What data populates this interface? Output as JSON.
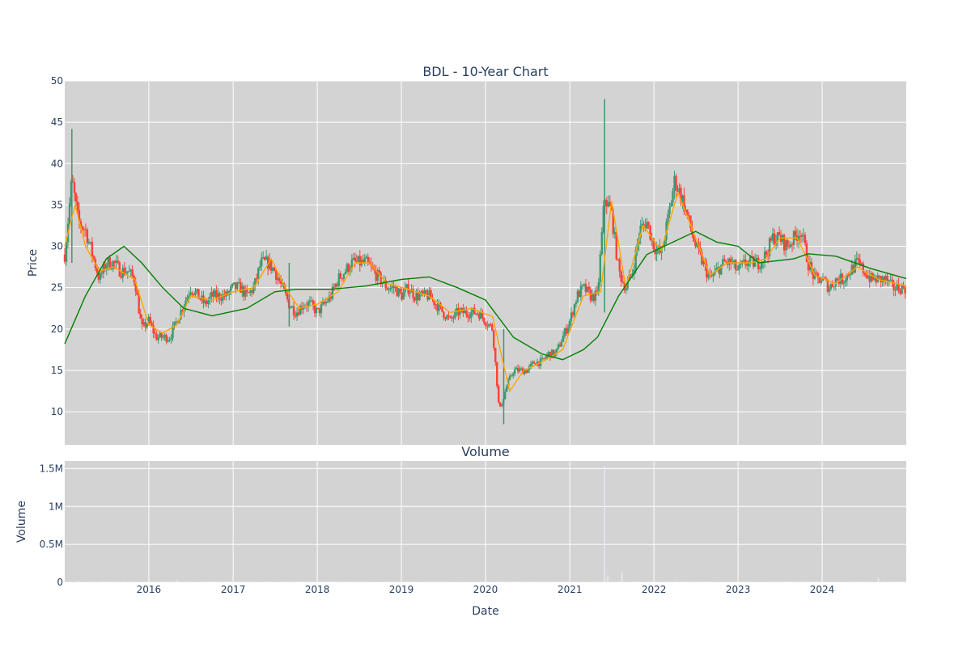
{
  "chart_data": [
    {
      "type": "candlestick",
      "title": "BDL - 10-Year Chart",
      "ylabel": "Price",
      "xlabel": "",
      "ylim": [
        6,
        50
      ],
      "y_ticks": [
        10,
        15,
        20,
        25,
        30,
        35,
        40,
        45,
        50
      ],
      "x_range": [
        "2015-01-01",
        "2024-12-31"
      ],
      "x_ticks": [
        "2016",
        "2017",
        "2018",
        "2019",
        "2020",
        "2021",
        "2022",
        "2023",
        "2024"
      ],
      "grid": true,
      "colors": {
        "increasing": "#3d9970",
        "decreasing": "#ff4136",
        "ma_short": "#ffa500",
        "ma_long": "#008000",
        "plot_bg": "#d3d3d3"
      },
      "close_approx": [
        [
          "2015-01-01",
          29
        ],
        [
          "2015-02-01",
          38
        ],
        [
          "2015-03-01",
          33
        ],
        [
          "2015-04-01",
          32
        ],
        [
          "2015-05-01",
          29
        ],
        [
          "2015-06-01",
          26
        ],
        [
          "2015-07-01",
          28
        ],
        [
          "2015-08-01",
          28
        ],
        [
          "2015-09-01",
          27
        ],
        [
          "2015-10-01",
          27
        ],
        [
          "2015-11-01",
          26
        ],
        [
          "2015-12-01",
          20
        ],
        [
          "2016-01-01",
          21
        ],
        [
          "2016-02-01",
          19
        ],
        [
          "2016-03-01",
          19
        ],
        [
          "2016-04-01",
          19
        ],
        [
          "2016-05-01",
          21
        ],
        [
          "2016-06-01",
          23
        ],
        [
          "2016-07-01",
          25
        ],
        [
          "2016-08-01",
          24
        ],
        [
          "2016-09-01",
          23
        ],
        [
          "2016-10-01",
          24
        ],
        [
          "2016-11-01",
          24
        ],
        [
          "2016-12-01",
          24
        ],
        [
          "2017-01-01",
          25
        ],
        [
          "2017-02-01",
          25
        ],
        [
          "2017-03-01",
          24
        ],
        [
          "2017-04-01",
          25
        ],
        [
          "2017-05-01",
          28
        ],
        [
          "2017-06-01",
          28
        ],
        [
          "2017-07-01",
          27
        ],
        [
          "2017-08-01",
          25
        ],
        [
          "2017-09-01",
          23
        ],
        [
          "2017-10-01",
          22
        ],
        [
          "2017-11-01",
          23
        ],
        [
          "2017-12-01",
          23
        ],
        [
          "2018-01-01",
          22
        ],
        [
          "2018-02-01",
          23
        ],
        [
          "2018-03-01",
          24
        ],
        [
          "2018-04-01",
          26
        ],
        [
          "2018-05-01",
          27
        ],
        [
          "2018-06-01",
          28
        ],
        [
          "2018-07-01",
          28
        ],
        [
          "2018-08-01",
          28
        ],
        [
          "2018-09-01",
          27
        ],
        [
          "2018-10-01",
          26
        ],
        [
          "2018-11-01",
          25
        ],
        [
          "2018-12-01",
          25
        ],
        [
          "2019-01-01",
          24
        ],
        [
          "2019-02-01",
          25
        ],
        [
          "2019-03-01",
          24
        ],
        [
          "2019-04-01",
          24
        ],
        [
          "2019-05-01",
          24
        ],
        [
          "2019-06-01",
          23
        ],
        [
          "2019-07-01",
          22
        ],
        [
          "2019-08-01",
          21
        ],
        [
          "2019-09-01",
          22
        ],
        [
          "2019-10-01",
          22
        ],
        [
          "2019-11-01",
          22
        ],
        [
          "2019-12-01",
          22
        ],
        [
          "2020-01-01",
          21
        ],
        [
          "2020-02-01",
          20
        ],
        [
          "2020-03-01",
          10
        ],
        [
          "2020-04-01",
          13
        ],
        [
          "2020-05-01",
          15
        ],
        [
          "2020-06-01",
          15
        ],
        [
          "2020-07-01",
          15
        ],
        [
          "2020-08-01",
          16
        ],
        [
          "2020-09-01",
          16
        ],
        [
          "2020-10-01",
          17
        ],
        [
          "2020-11-01",
          17
        ],
        [
          "2020-12-01",
          19
        ],
        [
          "2021-01-01",
          21
        ],
        [
          "2021-02-01",
          24
        ],
        [
          "2021-03-01",
          25
        ],
        [
          "2021-04-01",
          24
        ],
        [
          "2021-05-01",
          24
        ],
        [
          "2021-06-01",
          36
        ],
        [
          "2021-07-01",
          34
        ],
        [
          "2021-08-01",
          27
        ],
        [
          "2021-09-01",
          25
        ],
        [
          "2021-10-01",
          27
        ],
        [
          "2021-11-01",
          32
        ],
        [
          "2021-12-01",
          33
        ],
        [
          "2022-01-01",
          30
        ],
        [
          "2022-02-01",
          29
        ],
        [
          "2022-03-01",
          33
        ],
        [
          "2022-04-01",
          38
        ],
        [
          "2022-05-01",
          36
        ],
        [
          "2022-06-01",
          33
        ],
        [
          "2022-07-01",
          30
        ],
        [
          "2022-08-01",
          28
        ],
        [
          "2022-09-01",
          26
        ],
        [
          "2022-10-01",
          27
        ],
        [
          "2022-11-01",
          28
        ],
        [
          "2022-12-01",
          28
        ],
        [
          "2023-01-01",
          27
        ],
        [
          "2023-02-01",
          28
        ],
        [
          "2023-03-01",
          28
        ],
        [
          "2023-04-01",
          28
        ],
        [
          "2023-05-01",
          29
        ],
        [
          "2023-06-01",
          31
        ],
        [
          "2023-07-01",
          31
        ],
        [
          "2023-08-01",
          30
        ],
        [
          "2023-09-01",
          31
        ],
        [
          "2023-10-01",
          32
        ],
        [
          "2023-11-01",
          28
        ],
        [
          "2023-12-01",
          26
        ],
        [
          "2024-01-01",
          26
        ],
        [
          "2024-02-01",
          25
        ],
        [
          "2024-03-01",
          26
        ],
        [
          "2024-04-01",
          26
        ],
        [
          "2024-05-01",
          27
        ],
        [
          "2024-06-01",
          28
        ],
        [
          "2024-07-01",
          27
        ],
        [
          "2024-08-01",
          26
        ],
        [
          "2024-09-01",
          26
        ],
        [
          "2024-10-01",
          26
        ],
        [
          "2024-11-01",
          25
        ],
        [
          "2024-12-01",
          25
        ]
      ],
      "spikes": [
        {
          "date": "2015-02-01",
          "high": 44.2,
          "low": 28
        },
        {
          "date": "2021-06-01",
          "high": 47.8,
          "low": 22
        },
        {
          "date": "2020-03-20",
          "high": 20,
          "low": 8.5
        },
        {
          "date": "2017-09-01",
          "high": 28,
          "low": 20.3
        }
      ],
      "ma_short_approx": [
        [
          "2015-01-01",
          30
        ],
        [
          "2015-02-15",
          35
        ],
        [
          "2015-04-01",
          30
        ],
        [
          "2015-06-01",
          27
        ],
        [
          "2015-08-01",
          27.5
        ],
        [
          "2015-11-01",
          26
        ],
        [
          "2016-01-01",
          20.5
        ],
        [
          "2016-03-01",
          19.5
        ],
        [
          "2016-05-01",
          20.5
        ],
        [
          "2016-07-01",
          24
        ],
        [
          "2016-10-01",
          23.5
        ],
        [
          "2017-01-01",
          24.5
        ],
        [
          "2017-04-01",
          25
        ],
        [
          "2017-06-15",
          28.5
        ],
        [
          "2017-08-15",
          25
        ],
        [
          "2017-10-15",
          22.5
        ],
        [
          "2018-01-01",
          23
        ],
        [
          "2018-04-01",
          24.5
        ],
        [
          "2018-06-15",
          28
        ],
        [
          "2018-08-15",
          28
        ],
        [
          "2018-11-01",
          25.5
        ],
        [
          "2019-02-01",
          24.8
        ],
        [
          "2019-05-01",
          24
        ],
        [
          "2019-08-01",
          22
        ],
        [
          "2019-11-01",
          22.5
        ],
        [
          "2020-02-01",
          21.5
        ],
        [
          "2020-04-15",
          12.5
        ],
        [
          "2020-06-15",
          15
        ],
        [
          "2020-09-01",
          16
        ],
        [
          "2020-12-01",
          17.5
        ],
        [
          "2021-03-01",
          24
        ],
        [
          "2021-05-15",
          24.5
        ],
        [
          "2021-07-01",
          35.5
        ],
        [
          "2021-09-01",
          25
        ],
        [
          "2021-11-15",
          32.5
        ],
        [
          "2022-02-01",
          29.5
        ],
        [
          "2022-04-15",
          36.5
        ],
        [
          "2022-07-01",
          31
        ],
        [
          "2022-09-01",
          26.5
        ],
        [
          "2022-11-15",
          28
        ],
        [
          "2023-03-01",
          28
        ],
        [
          "2023-05-01",
          28.5
        ],
        [
          "2023-07-01",
          31
        ],
        [
          "2023-09-15",
          31
        ],
        [
          "2023-12-01",
          26.5
        ],
        [
          "2024-03-01",
          25.5
        ],
        [
          "2024-06-01",
          27.5
        ],
        [
          "2024-09-01",
          26
        ],
        [
          "2024-12-31",
          25.2
        ]
      ],
      "ma_long_approx": [
        [
          "2015-01-01",
          18.2
        ],
        [
          "2015-04-01",
          24
        ],
        [
          "2015-07-01",
          28.5
        ],
        [
          "2015-09-15",
          30
        ],
        [
          "2015-12-01",
          28
        ],
        [
          "2016-03-01",
          25
        ],
        [
          "2016-06-01",
          22.5
        ],
        [
          "2016-10-01",
          21.6
        ],
        [
          "2017-03-01",
          22.5
        ],
        [
          "2017-07-01",
          24.5
        ],
        [
          "2017-10-01",
          24.8
        ],
        [
          "2018-03-01",
          24.8
        ],
        [
          "2018-08-01",
          25.2
        ],
        [
          "2019-01-01",
          26
        ],
        [
          "2019-05-01",
          26.3
        ],
        [
          "2019-09-01",
          25
        ],
        [
          "2020-01-01",
          23.5
        ],
        [
          "2020-05-01",
          19
        ],
        [
          "2020-09-01",
          17
        ],
        [
          "2020-12-01",
          16.3
        ],
        [
          "2021-03-01",
          17.5
        ],
        [
          "2021-05-01",
          19
        ],
        [
          "2021-08-01",
          24
        ],
        [
          "2021-12-01",
          29
        ],
        [
          "2022-03-01",
          30.2
        ],
        [
          "2022-07-01",
          31.8
        ],
        [
          "2022-10-01",
          30.5
        ],
        [
          "2023-01-01",
          30
        ],
        [
          "2023-04-01",
          28
        ],
        [
          "2023-09-01",
          28.5
        ],
        [
          "2023-11-01",
          29.1
        ],
        [
          "2024-03-01",
          28.8
        ],
        [
          "2024-08-01",
          27.3
        ],
        [
          "2024-12-31",
          26.1
        ]
      ]
    },
    {
      "type": "bar",
      "title": "Volume",
      "xlabel": "Date",
      "ylabel": "Volume",
      "ylim": [
        0,
        1600000
      ],
      "y_ticks": [
        {
          "value": 0,
          "label": "0"
        },
        {
          "value": 500000,
          "label": "0.5M"
        },
        {
          "value": 1000000,
          "label": "1M"
        },
        {
          "value": 1500000,
          "label": "1.5M"
        }
      ],
      "x_ticks": [
        "2016",
        "2017",
        "2018",
        "2019",
        "2020",
        "2021",
        "2022",
        "2023",
        "2024"
      ],
      "color": "#e8e8f4",
      "values_approx": [
        [
          "2015-03-01",
          18000
        ],
        [
          "2016-05-01",
          30000
        ],
        [
          "2017-06-01",
          10000
        ],
        [
          "2018-06-01",
          8000
        ],
        [
          "2019-06-01",
          6000
        ],
        [
          "2020-03-01",
          20000
        ],
        [
          "2021-02-01",
          15000
        ],
        [
          "2021-06-01",
          1530000
        ],
        [
          "2021-06-15",
          90000
        ],
        [
          "2021-08-15",
          130000
        ],
        [
          "2022-04-01",
          20000
        ],
        [
          "2023-09-01",
          15000
        ],
        [
          "2024-09-01",
          60000
        ]
      ]
    }
  ]
}
